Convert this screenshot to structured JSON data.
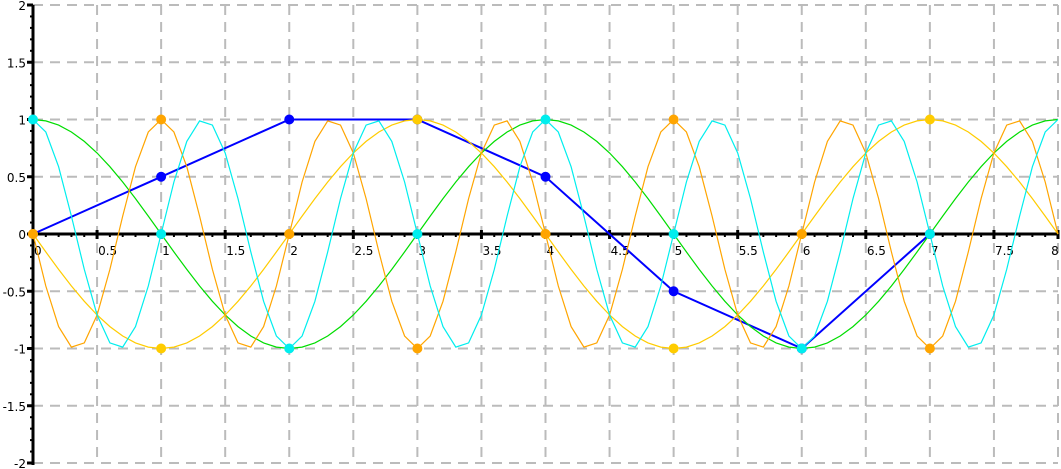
{
  "chart_data": {
    "type": "line",
    "title": "",
    "xlabel": "",
    "ylabel": "",
    "xlim": [
      0,
      8
    ],
    "ylim": [
      -2,
      2
    ],
    "grid": true,
    "x_ticks": [
      "0",
      "0.5",
      "1",
      "1.5",
      "2",
      "2.5",
      "3",
      "3.5",
      "4",
      "4.5",
      "5",
      "5.5",
      "6",
      "6.5",
      "7",
      "7.5",
      "8"
    ],
    "y_ticks": [
      "2",
      "1.5",
      "1",
      "0.5",
      "0",
      "-0.5",
      "-1",
      "-1.5",
      "-2"
    ],
    "series": [
      {
        "color": "#0000ff",
        "markers": true,
        "style": "thick",
        "x": [
          0,
          1,
          2,
          3,
          4,
          5,
          6,
          7
        ],
        "y": [
          0,
          0.5,
          1,
          1,
          0.5,
          -0.5,
          -1,
          0
        ]
      },
      {
        "color": "#00dd00",
        "markers": false,
        "function": "cos(pi*x/2)",
        "sample_step": 0.1
      },
      {
        "color": "#ffcc00",
        "markers": true,
        "function": "-sin(pi*x/2)",
        "sample_step": 0.1,
        "marker_x": [
          0,
          1,
          2,
          3,
          4,
          5,
          6,
          7
        ],
        "marker_y": [
          0,
          -1,
          0,
          1,
          0,
          -1,
          0,
          1
        ]
      },
      {
        "color": "#ffa500",
        "markers": true,
        "function": "-sin(3*pi*x/2)",
        "sample_step": 0.1,
        "marker_x": [
          0,
          1,
          2,
          3,
          4,
          5,
          6,
          7
        ],
        "marker_y": [
          0,
          1,
          0,
          -1,
          0,
          1,
          0,
          -1
        ]
      },
      {
        "color": "#00eeee",
        "markers": true,
        "function": "cos(3*pi*x/2)",
        "sample_step": 0.1,
        "marker_x": [
          0,
          1,
          2,
          3,
          4,
          5,
          6,
          7
        ],
        "marker_y": [
          1,
          0,
          -1,
          0,
          1,
          0,
          -1,
          0
        ]
      }
    ]
  }
}
